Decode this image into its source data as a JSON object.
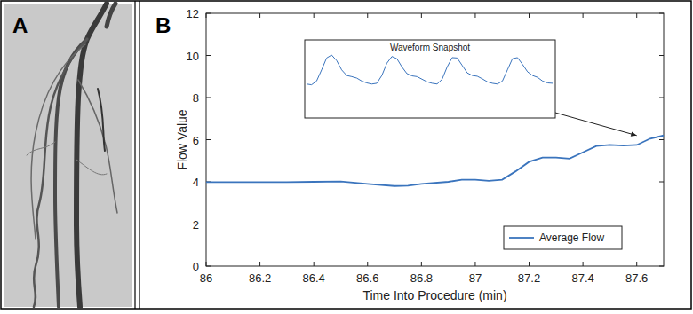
{
  "panel_labels": [
    "A",
    "B"
  ],
  "chart_data": {
    "type": "line",
    "x_label": "Time Into Procedure (min)",
    "y_label": "Flow Value",
    "x": [
      86,
      86.1,
      86.2,
      86.3,
      86.4,
      86.5,
      86.6,
      86.7,
      86.75,
      86.8,
      86.9,
      86.95,
      87.0,
      87.05,
      87.1,
      87.15,
      87.2,
      87.25,
      87.3,
      87.35,
      87.4,
      87.45,
      87.5,
      87.55,
      87.6,
      87.65,
      87.7
    ],
    "series": [
      {
        "name": "Average Flow",
        "color": "#3a74bd",
        "values": [
          3.98,
          3.98,
          3.98,
          3.98,
          4.0,
          4.02,
          3.9,
          3.8,
          3.82,
          3.9,
          4.0,
          4.1,
          4.1,
          4.05,
          4.1,
          4.5,
          4.95,
          5.15,
          5.15,
          5.1,
          5.4,
          5.7,
          5.75,
          5.72,
          5.75,
          6.05,
          6.2
        ]
      }
    ],
    "xlim": [
      86,
      87.7
    ],
    "xticks": [
      86,
      86.2,
      86.4,
      86.6,
      86.8,
      87,
      87.2,
      87.4,
      87.6
    ],
    "ylim": [
      0,
      12
    ],
    "yticks": [
      0,
      2,
      4,
      6,
      8,
      10,
      12
    ],
    "grid": false,
    "legend": "lower right",
    "inset": {
      "title": "Waveform Snapshot",
      "ylim": [
        0,
        1
      ],
      "values": [
        0.22,
        0.2,
        0.3,
        0.6,
        0.92,
        1.0,
        0.85,
        0.6,
        0.45,
        0.42,
        0.38,
        0.3,
        0.25,
        0.22,
        0.24,
        0.45,
        0.78,
        0.96,
        0.9,
        0.68,
        0.5,
        0.44,
        0.42,
        0.35,
        0.28,
        0.24,
        0.22,
        0.35,
        0.68,
        0.93,
        0.92,
        0.72,
        0.52,
        0.45,
        0.43,
        0.36,
        0.28,
        0.24,
        0.22,
        0.3,
        0.6,
        0.9,
        0.93,
        0.75,
        0.55,
        0.45,
        0.4,
        0.3,
        0.25,
        0.24
      ],
      "points_to": {
        "x": 87.6,
        "y": 6.2
      }
    }
  }
}
